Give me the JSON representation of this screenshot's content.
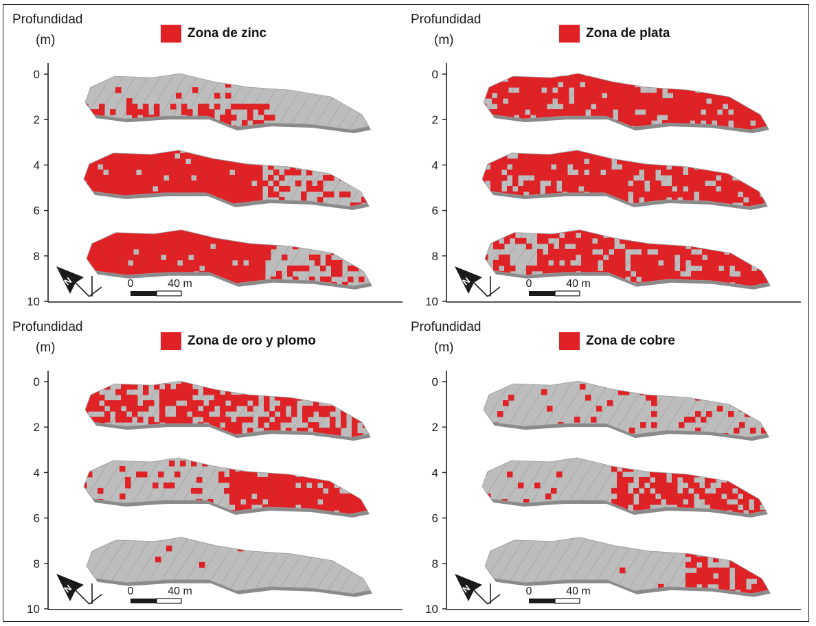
{
  "axis_title_line1": "Profundidad",
  "axis_title_line2": "(m)",
  "depth_ticks": [
    "0",
    "2",
    "4",
    "6",
    "8",
    "10"
  ],
  "scale_bar": {
    "start_label": "0",
    "end_label": "40 m"
  },
  "north_arrow_letter": "N",
  "colors": {
    "zone": "#e02226",
    "block": "#bdbdbd",
    "block_dark": "#8a8a8a",
    "axis": "#1a1a1a"
  },
  "panels": [
    {
      "legend_label": "Zona de zinc",
      "slices": [
        {
          "depth_m": 1,
          "red_fraction": 0.22
        },
        {
          "depth_m": 4.5,
          "red_fraction": 0.78
        },
        {
          "depth_m": 8,
          "red_fraction": 0.85
        }
      ]
    },
    {
      "legend_label": "Zona de plata",
      "slices": [
        {
          "depth_m": 1,
          "red_fraction": 0.85
        },
        {
          "depth_m": 4.5,
          "red_fraction": 0.8
        },
        {
          "depth_m": 8,
          "red_fraction": 0.8
        }
      ]
    },
    {
      "legend_label": "Zona de oro y plomo",
      "slices": [
        {
          "depth_m": 1,
          "red_fraction": 0.6
        },
        {
          "depth_m": 4.5,
          "red_fraction": 0.3
        },
        {
          "depth_m": 8,
          "red_fraction": 0.01
        }
      ]
    },
    {
      "legend_label": "Zona de cobre",
      "slices": [
        {
          "depth_m": 1,
          "red_fraction": 0.1
        },
        {
          "depth_m": 4.5,
          "red_fraction": 0.35
        },
        {
          "depth_m": 8,
          "red_fraction": 0.18
        }
      ]
    }
  ]
}
